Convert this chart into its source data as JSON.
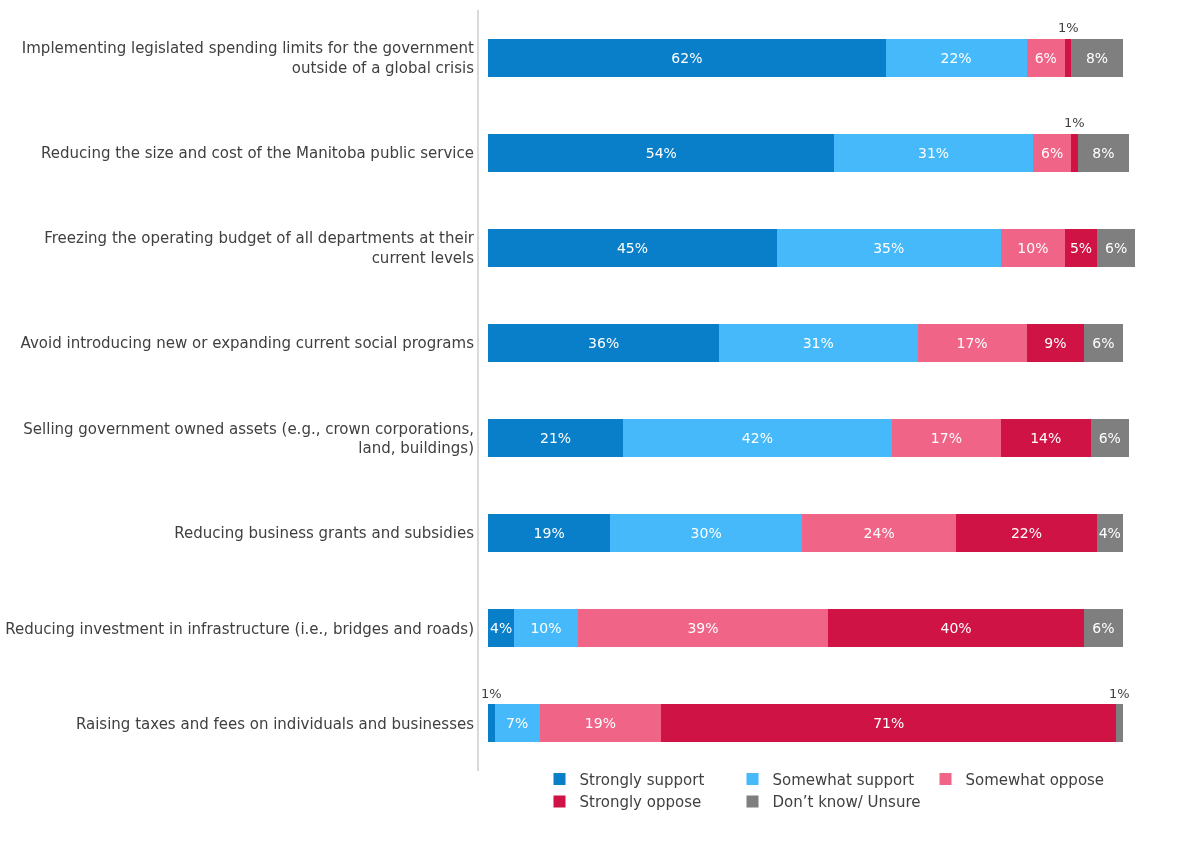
{
  "chart_data": {
    "type": "bar",
    "orientation": "horizontal",
    "stacked": true,
    "tick_labels": "y",
    "legend": "bottom",
    "categories": [
      "Implementing legislated spending limits for the government outside of a global crisis",
      "Reducing the size and cost of the Manitoba public service",
      "Freezing the operating budget of all departments at their current levels",
      "Avoid introducing new or expanding current social programs",
      "Selling government owned assets (e.g., crown corporations, land, buildings)",
      "Reducing business grants and subsidies",
      "Reducing investment in infrastructure (i.e., bridges and roads)",
      "Raising taxes and fees on individuals and businesses"
    ],
    "series": [
      {
        "name": "Strongly support",
        "color": "#0a7fc9",
        "values": [
          62,
          54,
          45,
          36,
          21,
          19,
          4,
          1
        ],
        "value_labels": [
          "62%",
          "54%",
          "45%",
          "36%",
          "21%",
          "19%",
          "4%",
          "1%"
        ]
      },
      {
        "name": "Somewhat support",
        "color": "#45b9f9",
        "values": [
          22,
          31,
          35,
          31,
          42,
          30,
          10,
          7
        ],
        "value_labels": [
          "22%",
          "31%",
          "35%",
          "31%",
          "42%",
          "30%",
          "10%",
          "7%"
        ]
      },
      {
        "name": "Somewhat oppose",
        "color": "#f06487",
        "values": [
          6,
          6,
          10,
          17,
          17,
          24,
          39,
          19
        ],
        "value_labels": [
          "6%",
          "6%",
          "10%",
          "17%",
          "17%",
          "24%",
          "39%",
          "19%"
        ]
      },
      {
        "name": "Strongly oppose",
        "color": "#d01345",
        "values": [
          1,
          1,
          5,
          9,
          14,
          22,
          40,
          71
        ],
        "value_labels": [
          "1%",
          "1%",
          "5%",
          "9%",
          "14%",
          "22%",
          "40%",
          "71%"
        ]
      },
      {
        "name": "Don’t know/ Unsure",
        "color": "#7f7f7f",
        "values": [
          8,
          8,
          6,
          6,
          6,
          4,
          6,
          1
        ],
        "value_labels": [
          "8%",
          "8%",
          "6%",
          "6%",
          "6%",
          "4%",
          "6%",
          "1%"
        ]
      }
    ]
  }
}
